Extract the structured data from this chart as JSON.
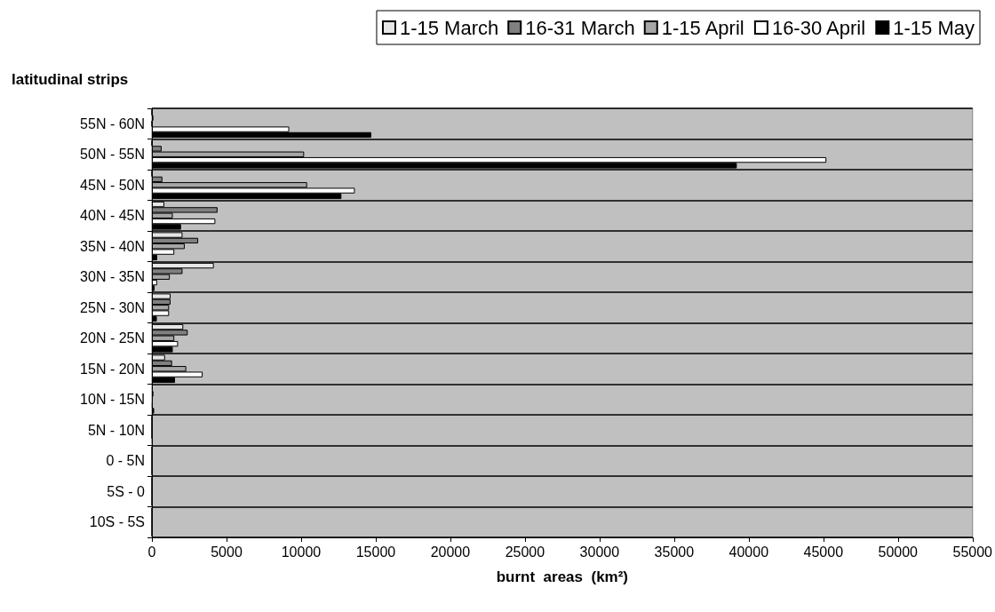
{
  "chart_data": {
    "type": "bar",
    "orientation": "horizontal",
    "ylabel": "latitudinal strips",
    "xlabel": "burnt  areas  (km²)",
    "categories": [
      "55N - 60N",
      "50N - 55N",
      "45N - 50N",
      "40N - 45N",
      "35N - 40N",
      "30N - 35N",
      "25N - 30N",
      "20N - 25N",
      "15N - 20N",
      "10N - 15N",
      "5N - 10N",
      "0 - 5N",
      "5S - 0",
      "10S - 5S"
    ],
    "series": [
      {
        "name": "1-15 March",
        "color": "#e6e6e6",
        "values": [
          0,
          0,
          0,
          830,
          2050,
          4150,
          1250,
          2100,
          880,
          null,
          0,
          0,
          0,
          0
        ]
      },
      {
        "name": "16-31 March",
        "color": "#808080",
        "values": [
          100,
          650,
          700,
          4400,
          3100,
          2050,
          1250,
          2400,
          1350,
          100,
          0,
          0,
          0,
          0
        ]
      },
      {
        "name": "1-15 April",
        "color": "#a6a6a6",
        "values": [
          0,
          10200,
          10400,
          1400,
          2200,
          1200,
          1150,
          1500,
          2300,
          null,
          0,
          0,
          0,
          0
        ]
      },
      {
        "name": "16-30 April",
        "color": "#ffffff",
        "values": [
          9200,
          45200,
          13600,
          4250,
          1500,
          350,
          1150,
          1750,
          3400,
          50,
          0,
          0,
          0,
          0
        ]
      },
      {
        "name": "1-15 May",
        "color": "#000000",
        "values": [
          14700,
          39200,
          12700,
          1950,
          350,
          180,
          330,
          1400,
          1550,
          150,
          50,
          0,
          0,
          0
        ]
      }
    ],
    "xlim": [
      0,
      55000
    ],
    "xticks": [
      0,
      5000,
      10000,
      15000,
      20000,
      25000,
      30000,
      35000,
      40000,
      45000,
      50000,
      55000
    ],
    "grid": "y",
    "legend": "top"
  }
}
